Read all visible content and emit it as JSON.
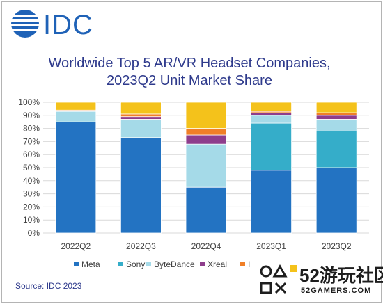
{
  "logo": {
    "text": "IDC"
  },
  "source": "Source: IDC 2023",
  "watermark": {
    "brand": "52游玩社区",
    "site": "52GAMERS.COM"
  },
  "colors": {
    "Meta": "#2373c2",
    "Sony": "#35adc9",
    "ByteDance": "#a5dae8",
    "Xreal": "#8e3d8c",
    "Pico_hidden": "#f07f27",
    "Others": "#f4c21b"
  },
  "chart_data": {
    "type": "bar",
    "stacked": true,
    "title_lines": [
      "Worldwide Top 5 AR/VR Headset Companies,",
      "2023Q2 Unit Market Share"
    ],
    "categories": [
      "2022Q2",
      "2022Q3",
      "2022Q4",
      "2023Q1",
      "2023Q2"
    ],
    "ylim": [
      0,
      100
    ],
    "yticks": [
      "0%",
      "10%",
      "20%",
      "30%",
      "40%",
      "50%",
      "60%",
      "70%",
      "80%",
      "90%",
      "100%"
    ],
    "series": [
      {
        "name": "Meta",
        "values": [
          85,
          73,
          35,
          48,
          50
        ]
      },
      {
        "name": "Sony",
        "values": [
          0,
          0,
          0,
          36,
          28
        ]
      },
      {
        "name": "ByteDance",
        "values": [
          8,
          14,
          33,
          6,
          9
        ]
      },
      {
        "name": "Xreal",
        "values": [
          0,
          2,
          7,
          2,
          3
        ]
      },
      {
        "name": "",
        "values": [
          1,
          2,
          5,
          1,
          2
        ]
      },
      {
        "name": "",
        "values": [
          6,
          9,
          20,
          7,
          8
        ]
      }
    ],
    "legend": [
      "Meta",
      "Sony",
      "ByteDance",
      "Xreal",
      "I"
    ],
    "legend_position": "bottom",
    "grid": true
  }
}
